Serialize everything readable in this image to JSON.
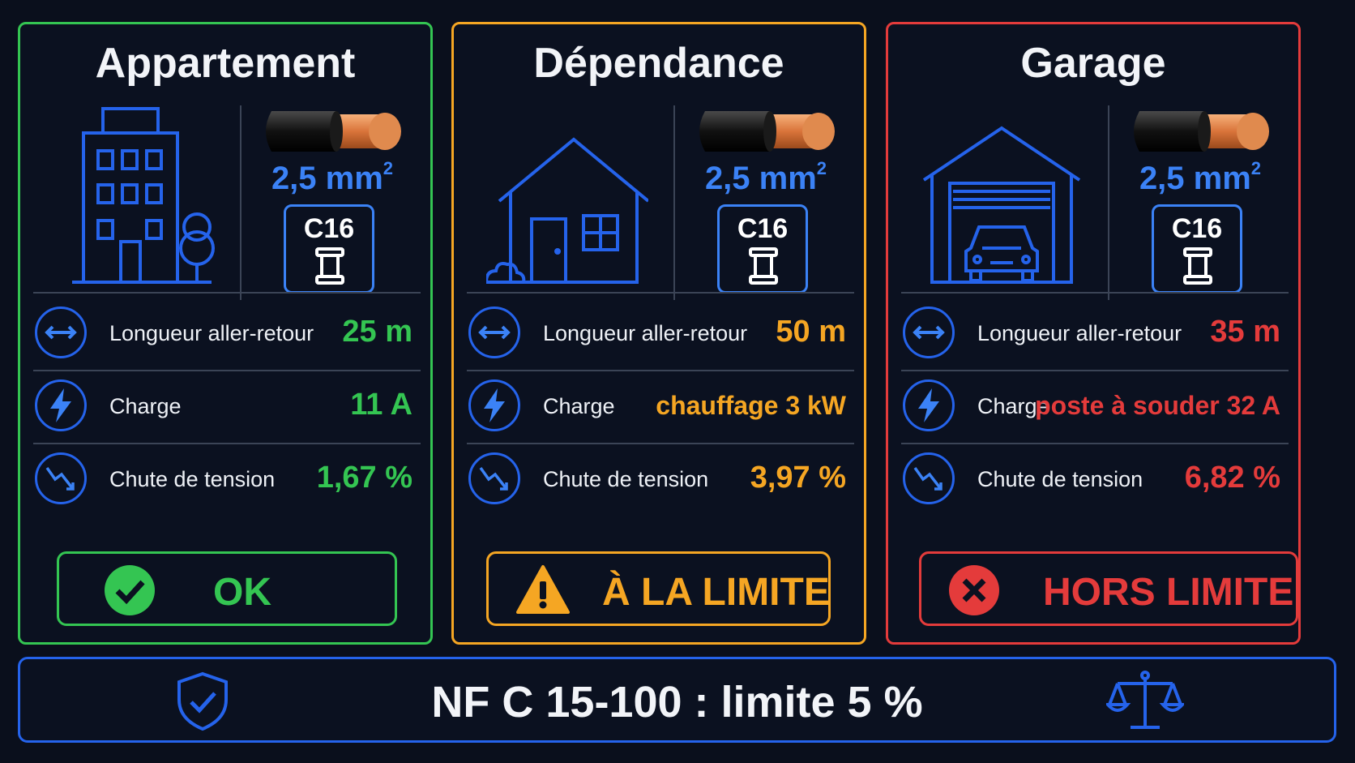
{
  "cards": [
    {
      "title": "Appartement",
      "building_icon": "apartment-building-icon",
      "section": "2,5 mm",
      "section_exp": "2",
      "breaker": "C16",
      "rows": [
        {
          "icon": "length-arrows-icon",
          "label": "Longueur aller-retour",
          "value": "25 m"
        },
        {
          "icon": "lightning-icon",
          "label": "Charge",
          "value": "11 A"
        },
        {
          "icon": "voltage-drop-icon",
          "label": "Chute de tension",
          "value": "1,67 %"
        }
      ],
      "status_icon": "check-circle-icon",
      "status": "OK",
      "color": "#34c552"
    },
    {
      "title": "Dépendance",
      "building_icon": "house-icon",
      "section": "2,5 mm",
      "section_exp": "2",
      "breaker": "C16",
      "rows": [
        {
          "icon": "length-arrows-icon",
          "label": "Longueur aller-retour",
          "value": "50 m"
        },
        {
          "icon": "lightning-icon",
          "label": "Charge",
          "value": "chauffage 3 kW"
        },
        {
          "icon": "voltage-drop-icon",
          "label": "Chute de tension",
          "value": "3,97 %"
        }
      ],
      "status_icon": "warning-triangle-icon",
      "status": "À LA LIMITE",
      "color": "#f5a623"
    },
    {
      "title": "Garage",
      "building_icon": "garage-car-icon",
      "section": "2,5 mm",
      "section_exp": "2",
      "breaker": "C16",
      "rows": [
        {
          "icon": "length-arrows-icon",
          "label": "Longueur aller-retour",
          "value": "35 m"
        },
        {
          "icon": "lightning-icon",
          "label": "Charge",
          "value": "poste à souder 32 A"
        },
        {
          "icon": "voltage-drop-icon",
          "label": "Chute de tension",
          "value": "6,82 %"
        }
      ],
      "status_icon": "x-circle-icon",
      "status": "HORS LIMITE",
      "color": "#e43b3b"
    }
  ],
  "footer": {
    "text": "NF C 15-100 : limite 5 %",
    "left_icon": "shield-check-icon",
    "right_icon": "balance-scale-icon"
  },
  "colors": {
    "background": "#0a0f1c",
    "accent_blue": "#3b82f6",
    "ok": "#34c552",
    "warning": "#f5a623",
    "error": "#e43b3b"
  }
}
